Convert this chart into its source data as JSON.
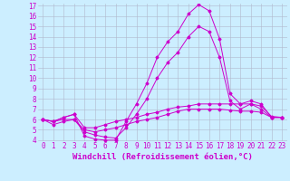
{
  "xlabel": "Windchill (Refroidissement éolien,°C)",
  "x": [
    0,
    1,
    2,
    3,
    4,
    5,
    6,
    7,
    8,
    9,
    10,
    11,
    12,
    13,
    14,
    15,
    16,
    17,
    18,
    19,
    20,
    21,
    22,
    23
  ],
  "line1": [
    6.0,
    5.8,
    6.2,
    6.5,
    4.4,
    4.1,
    4.0,
    4.0,
    5.8,
    7.5,
    9.5,
    12.0,
    13.5,
    14.5,
    16.2,
    17.1,
    16.5,
    13.8,
    8.5,
    7.5,
    7.8,
    7.5,
    6.2,
    6.2
  ],
  "line2": [
    6.0,
    5.8,
    6.2,
    6.5,
    5.2,
    5.2,
    5.5,
    5.8,
    6.0,
    6.2,
    6.5,
    6.7,
    7.0,
    7.2,
    7.3,
    7.5,
    7.5,
    7.5,
    7.5,
    7.5,
    7.5,
    7.3,
    6.3,
    6.2
  ],
  "line3": [
    6.0,
    5.8,
    6.0,
    6.0,
    5.0,
    4.8,
    5.0,
    5.2,
    5.5,
    5.8,
    6.0,
    6.2,
    6.5,
    6.8,
    7.0,
    7.0,
    7.0,
    7.0,
    6.9,
    6.8,
    6.8,
    6.7,
    6.2,
    6.2
  ],
  "line4": [
    6.0,
    5.5,
    5.8,
    6.0,
    4.8,
    4.5,
    4.3,
    4.2,
    5.2,
    6.5,
    8.0,
    10.0,
    11.5,
    12.5,
    14.0,
    15.0,
    14.5,
    12.0,
    7.8,
    7.0,
    7.5,
    7.0,
    6.2,
    6.2
  ],
  "line_color": "#cc00cc",
  "bg_color": "#cceeff",
  "grid_color": "#b0b8cc",
  "ylim": [
    4,
    17
  ],
  "yticks": [
    4,
    5,
    6,
    7,
    8,
    9,
    10,
    11,
    12,
    13,
    14,
    15,
    16,
    17
  ],
  "xticks": [
    0,
    1,
    2,
    3,
    4,
    5,
    6,
    7,
    8,
    9,
    10,
    11,
    12,
    13,
    14,
    15,
    16,
    17,
    18,
    19,
    20,
    21,
    22,
    23
  ],
  "tick_fontsize": 5.5,
  "xlabel_fontsize": 6.5
}
